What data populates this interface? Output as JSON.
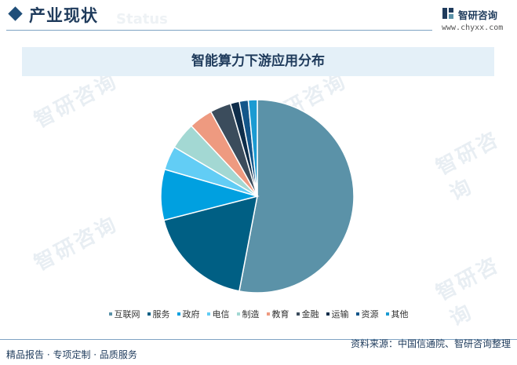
{
  "header": {
    "title": "产业现状",
    "watermark_text": "Status"
  },
  "logo": {
    "name": "智研咨询",
    "url": "www.chyxx.com"
  },
  "watermark": {
    "text": "智研咨询"
  },
  "chart_data": {
    "type": "pie",
    "title": "智能算力下游应用分布",
    "categories": [
      "互联网",
      "服务",
      "政府",
      "电信",
      "制造",
      "教育",
      "金融",
      "运输",
      "资源",
      "其他"
    ],
    "values": [
      53,
      18,
      8.5,
      4,
      4.5,
      4,
      3.5,
      1.5,
      1.5,
      1.5
    ],
    "colors": [
      "#5b92a8",
      "#005f84",
      "#00a0e0",
      "#62cdf5",
      "#a3d8d3",
      "#ee9a80",
      "#3b4c5c",
      "#0e2d4a",
      "#13568a",
      "#1b9bd2"
    ],
    "start_angle_deg": 0,
    "direction": "clockwise",
    "legend_position": "bottom"
  },
  "footer": {
    "left": "精品报告 · 专项定制 · 品质服务",
    "right": "资料来源：中国信通院、智研咨询整理"
  }
}
